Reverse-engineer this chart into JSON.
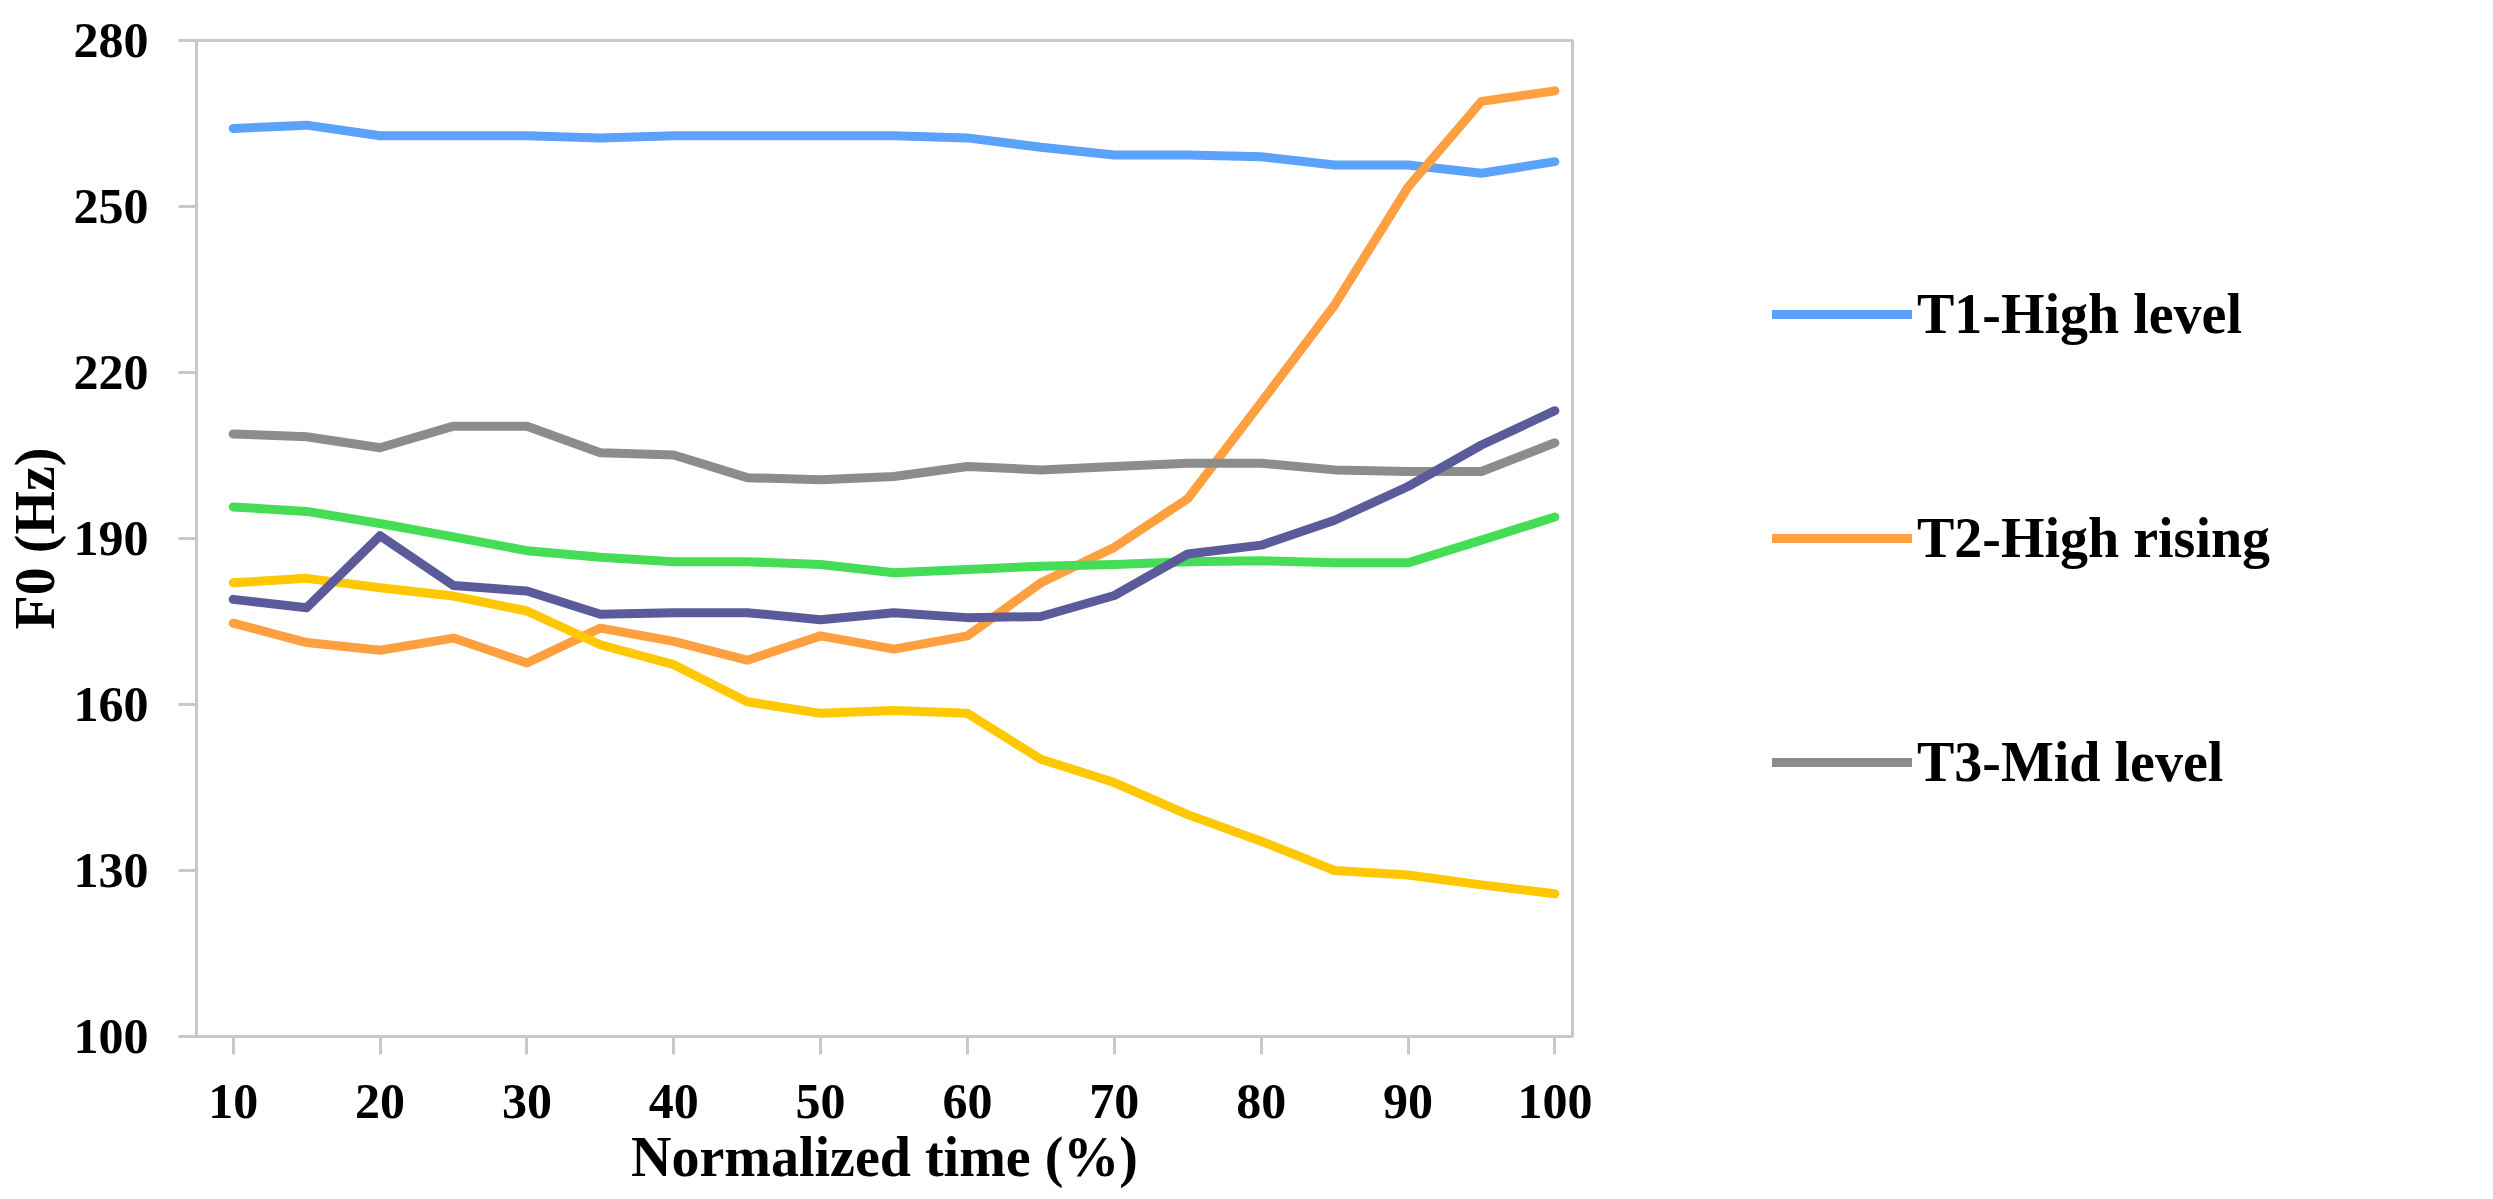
{
  "chart_data": {
    "type": "line",
    "xlabel": "Normalized time (%)",
    "ylabel": "F0 (Hz)",
    "x": [
      10,
      15,
      20,
      25,
      30,
      35,
      40,
      45,
      50,
      55,
      60,
      65,
      70,
      75,
      80,
      85,
      90,
      95,
      100
    ],
    "xlim": [
      7.5,
      101.2
    ],
    "xticks": [
      10,
      20,
      30,
      40,
      50,
      60,
      70,
      80,
      90,
      100
    ],
    "ylim": [
      100,
      280
    ],
    "yticks": [
      100,
      130,
      160,
      190,
      220,
      250,
      280
    ],
    "grid": false,
    "legend": "right",
    "marker": "none",
    "line_style": "solid",
    "series": [
      {
        "name": "T1-High level",
        "color": "#5ba3fa",
        "values": [
          264.1,
          264.7,
          262.8,
          262.8,
          262.8,
          262.4,
          262.8,
          262.8,
          262.8,
          262.8,
          262.4,
          260.7,
          259.3,
          259.3,
          259.0,
          257.5,
          257.5,
          256.0,
          258.1
        ]
      },
      {
        "name": "T2-High rising",
        "color": "#ffa040",
        "values": [
          174.7,
          171.2,
          169.8,
          172.0,
          167.5,
          173.8,
          171.4,
          168.0,
          172.4,
          170.0,
          172.4,
          182.0,
          188.4,
          197.2,
          214.6,
          232.2,
          253.5,
          269.0,
          270.9
        ]
      },
      {
        "name": "T3-Mid level",
        "color": "#8c8c8c",
        "values": [
          208.9,
          208.4,
          206.4,
          210.3,
          210.3,
          205.5,
          205.1,
          201.0,
          200.6,
          201.2,
          203.0,
          202.4,
          203.0,
          203.6,
          203.6,
          202.4,
          202.1,
          202.1,
          207.3
        ]
      },
      {
        "color": "#44dd55",
        "values": [
          195.7,
          194.9,
          192.7,
          190.3,
          187.8,
          186.6,
          185.8,
          185.8,
          185.3,
          183.8,
          184.4,
          185.0,
          185.3,
          185.8,
          186.0,
          185.6,
          185.6,
          189.7,
          193.9
        ]
      },
      {
        "color": "#ffc800",
        "values": [
          182.0,
          182.8,
          181.1,
          179.6,
          176.9,
          170.8,
          167.2,
          160.5,
          158.4,
          158.9,
          158.4,
          150.1,
          145.9,
          140.1,
          135.3,
          130.0,
          129.2,
          127.4,
          125.8
        ]
      },
      {
        "color": "#5b5b9b",
        "values": [
          179.0,
          177.5,
          190.5,
          181.5,
          180.5,
          176.3,
          176.6,
          176.6,
          175.3,
          176.6,
          175.7,
          175.9,
          179.7,
          187.2,
          188.8,
          193.3,
          199.4,
          206.9,
          213.1
        ]
      }
    ]
  }
}
